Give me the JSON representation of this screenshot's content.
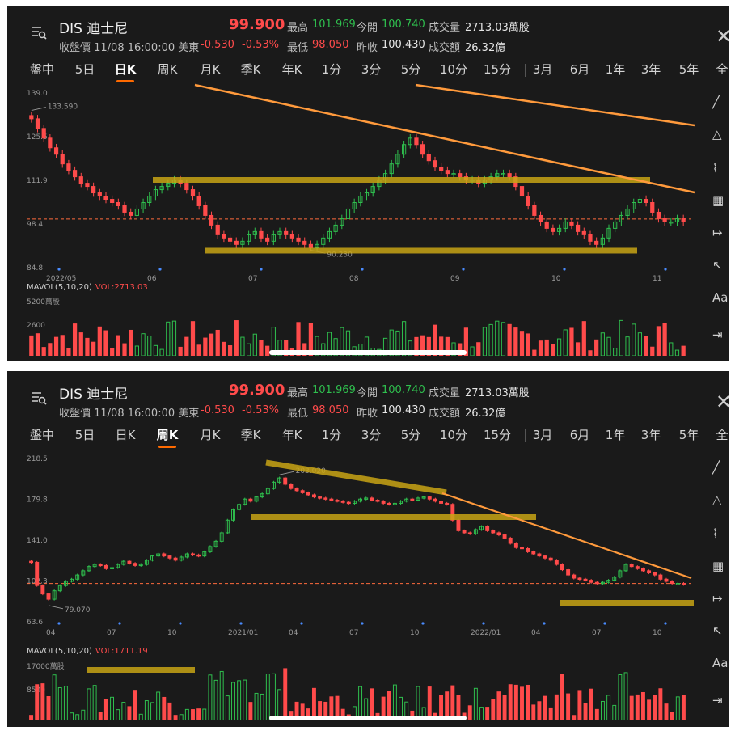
{
  "quote": {
    "symbol": "DIS 迪士尼",
    "price": "99.900",
    "status_line": "收盤價 11/08 16:00:00 美東",
    "change": "-0.530",
    "change_pct": "-0.53%",
    "high_label": "最高",
    "high": "101.969",
    "low_label": "最低",
    "low": "98.050",
    "open_label": "今開",
    "open": "100.740",
    "prev_close_label": "昨收",
    "prev_close": "100.430",
    "volume_label": "成交量",
    "volume": "2713.03萬股",
    "turnover_label": "成交額",
    "turnover": "26.32億"
  },
  "tabs": [
    "盤中",
    "5日",
    "日K",
    "周K",
    "月K",
    "季K",
    "年K",
    "1分",
    "3分",
    "5分",
    "10分",
    "15分",
    "3月",
    "6月",
    "1年",
    "3年",
    "5年",
    "全"
  ],
  "colors": {
    "up": "#2fbf4e",
    "down": "#ff4b4b",
    "accent": "#ff6a00",
    "trend": "#ff9a3c",
    "zone": "#c8a415"
  },
  "icons": [
    "menu-icon",
    "close-icon",
    "trendline-icon",
    "triangle-icon",
    "wave-icon",
    "ruler-icon",
    "extend-line-icon",
    "arrow-icon",
    "text-icon",
    "exit-icon"
  ],
  "tool_labels": {
    "text": "Aa"
  },
  "panels": [
    {
      "active_tab": "日K",
      "price_ticks": [
        "139.0",
        "125.5",
        "111.9",
        "98.4",
        "84.8"
      ],
      "date_ticks": [
        "2022/05",
        "06",
        "07",
        "08",
        "09",
        "10",
        "11"
      ],
      "annotations": {
        "high": "133.590",
        "low": "90.230"
      },
      "mavol": {
        "label": "MAVOL(5,10,20)",
        "vol": "VOL:2713.03",
        "scale_top": "5200萬股",
        "scale_mid": "2600"
      },
      "chart_data": {
        "type": "candlestick",
        "timeframe": "daily",
        "ylim": [
          84.8,
          139.0
        ],
        "current_price": 99.9,
        "highest_label": 133.59,
        "lowest_label": 90.23,
        "x_ticks": [
          "2022/05",
          "06",
          "07",
          "08",
          "09",
          "10",
          "11"
        ],
        "y_ticks": [
          139.0,
          125.5,
          111.9,
          98.4,
          84.8
        ],
        "closes": [
          131,
          128,
          125,
          122,
          120,
          117,
          115,
          113,
          111,
          110,
          108,
          107,
          106,
          105,
          104,
          102,
          101,
          103,
          105,
          107,
          109,
          110,
          111,
          112,
          111,
          109,
          107,
          104,
          101,
          98,
          95,
          94,
          93,
          92,
          93,
          95,
          96,
          94,
          93,
          95,
          96,
          95,
          94,
          93,
          92,
          91,
          92,
          94,
          96,
          98,
          100,
          103,
          105,
          107,
          108,
          110,
          112,
          114,
          117,
          120,
          123,
          125,
          123,
          120,
          118,
          116,
          115,
          114,
          114,
          113,
          112,
          112,
          111,
          112,
          113,
          114,
          114,
          113,
          110,
          107,
          104,
          101,
          99,
          97,
          96,
          97,
          99,
          98,
          96,
          95,
          93,
          92,
          94,
          97,
          99,
          101,
          103,
          105,
          106,
          105,
          102,
          100,
          99,
          99,
          100,
          99
        ]
      }
    },
    {
      "active_tab": "周K",
      "price_ticks": [
        "218.5",
        "179.8",
        "141.0",
        "102.3",
        "63.6"
      ],
      "date_ticks": [
        "04",
        "07",
        "10",
        "2021/01",
        "04",
        "07",
        "10",
        "2022/01",
        "04",
        "07",
        "10"
      ],
      "annotations": {
        "high": "203.020",
        "low": "79.070"
      },
      "mavol": {
        "label": "MAVOL(5,10,20)",
        "vol": "VOL:1711.19",
        "scale_top": "17000萬股",
        "scale_mid": "8500"
      },
      "chart_data": {
        "type": "candlestick",
        "timeframe": "weekly",
        "ylim": [
          63.6,
          218.5
        ],
        "current_price": 99.9,
        "highest_label": 203.02,
        "lowest_label": 79.07,
        "x_ticks": [
          "04",
          "07",
          "10",
          "2021/01",
          "04",
          "07",
          "10",
          "2022/01",
          "04",
          "07",
          "10"
        ],
        "y_ticks": [
          218.5,
          179.8,
          141.0,
          102.3,
          63.6
        ],
        "closes": [
          120,
          98,
          90,
          85,
          93,
          98,
          102,
          104,
          108,
          112,
          116,
          118,
          117,
          114,
          115,
          118,
          121,
          119,
          117,
          118,
          122,
          126,
          128,
          126,
          124,
          122,
          125,
          128,
          127,
          126,
          130,
          135,
          140,
          148,
          160,
          170,
          175,
          180,
          178,
          182,
          185,
          190,
          196,
          200,
          194,
          190,
          188,
          186,
          184,
          182,
          181,
          180,
          179,
          178,
          177,
          176,
          178,
          180,
          181,
          179,
          178,
          176,
          175,
          176,
          178,
          180,
          179,
          181,
          182,
          180,
          178,
          176,
          175,
          160,
          150,
          148,
          147,
          151,
          154,
          150,
          148,
          146,
          143,
          138,
          134,
          133,
          130,
          128,
          126,
          124,
          122,
          118,
          113,
          108,
          105,
          104,
          103,
          101,
          100,
          101,
          103,
          106,
          112,
          118,
          116,
          114,
          112,
          110,
          108,
          104,
          102,
          100,
          100,
          99
        ]
      }
    }
  ]
}
